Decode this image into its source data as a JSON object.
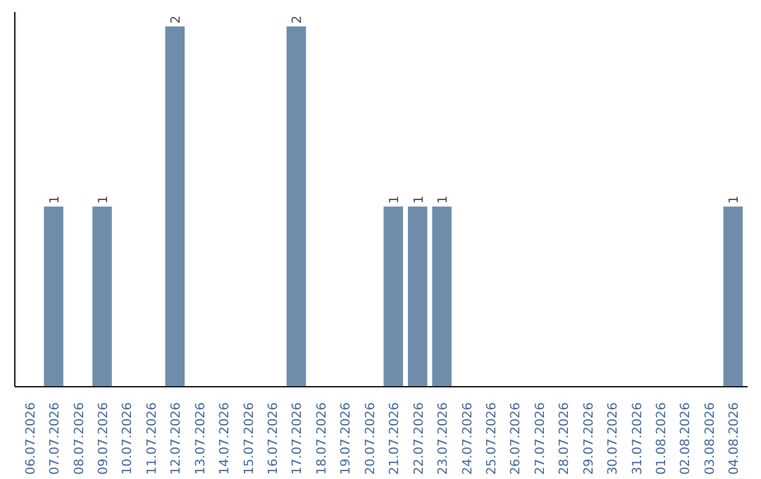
{
  "chart_data": {
    "type": "bar",
    "categories": [
      "06.07.2026",
      "07.07.2026",
      "08.07.2026",
      "09.07.2026",
      "10.07.2026",
      "11.07.2026",
      "12.07.2026",
      "13.07.2026",
      "14.07.2026",
      "15.07.2026",
      "16.07.2026",
      "17.07.2026",
      "18.07.2026",
      "19.07.2026",
      "20.07.2026",
      "21.07.2026",
      "22.07.2026",
      "23.07.2026",
      "24.07.2026",
      "25.07.2026",
      "26.07.2026",
      "27.07.2026",
      "28.07.2026",
      "29.07.2026",
      "30.07.2026",
      "31.07.2026",
      "01.08.2026",
      "02.08.2026",
      "03.08.2026",
      "04.08.2026"
    ],
    "values": [
      0,
      1,
      0,
      1,
      0,
      0,
      2,
      0,
      0,
      0,
      0,
      2,
      0,
      0,
      0,
      1,
      1,
      1,
      0,
      0,
      0,
      0,
      0,
      0,
      0,
      0,
      0,
      0,
      0,
      1
    ],
    "value_labels": [
      null,
      "1",
      null,
      "1",
      null,
      null,
      "2",
      null,
      null,
      null,
      null,
      "2",
      null,
      null,
      null,
      "1",
      "1",
      "1",
      null,
      null,
      null,
      null,
      null,
      null,
      null,
      null,
      null,
      null,
      null,
      "1"
    ],
    "color": "#6f8dab",
    "grid": false
  }
}
